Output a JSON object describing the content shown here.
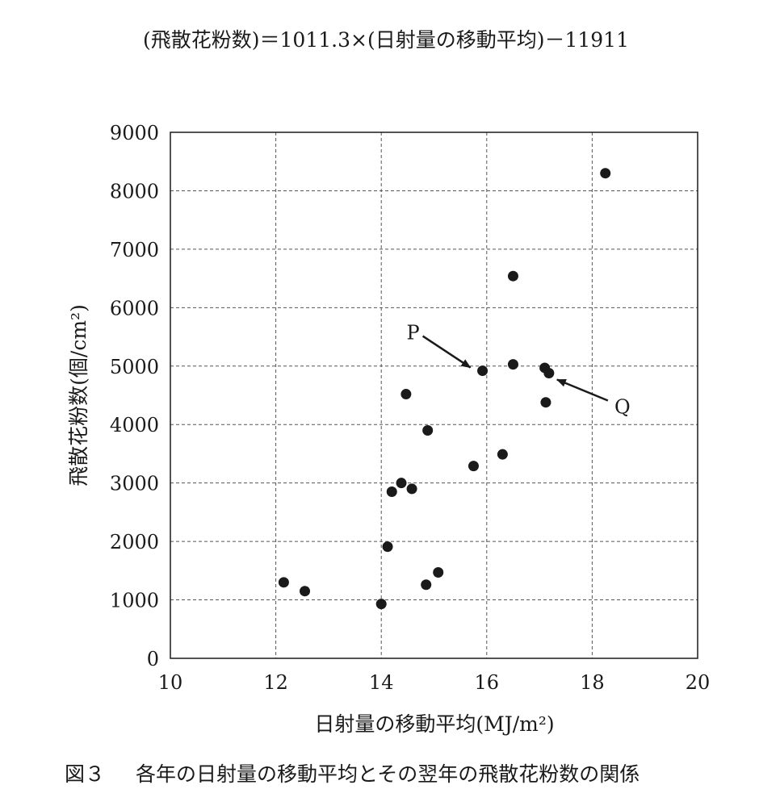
{
  "chart_data": {
    "type": "scatter",
    "title": "(飛散花粉数)＝1011.3×(日射量の移動平均)－11911",
    "xlabel": "日射量の移動平均(MJ/m²)",
    "ylabel": "飛散花粉数(個/cm²)",
    "xlim": [
      10,
      20
    ],
    "ylim": [
      0,
      9000
    ],
    "x_ticks": [
      "10",
      "12",
      "14",
      "16",
      "18",
      "20"
    ],
    "y_ticks": [
      "0",
      "1000",
      "2000",
      "3000",
      "4000",
      "5000",
      "6000",
      "7000",
      "8000",
      "9000"
    ],
    "grid": true,
    "series": [
      {
        "points": [
          {
            "x": 12.15,
            "y": 1300
          },
          {
            "x": 12.55,
            "y": 1150
          },
          {
            "x": 14.0,
            "y": 930
          },
          {
            "x": 14.12,
            "y": 1910
          },
          {
            "x": 14.2,
            "y": 2850
          },
          {
            "x": 14.38,
            "y": 3000
          },
          {
            "x": 14.47,
            "y": 4520
          },
          {
            "x": 14.58,
            "y": 2900
          },
          {
            "x": 14.85,
            "y": 1260
          },
          {
            "x": 14.88,
            "y": 3900
          },
          {
            "x": 15.08,
            "y": 1470
          },
          {
            "x": 15.75,
            "y": 3290
          },
          {
            "x": 15.92,
            "y": 4920
          },
          {
            "x": 16.3,
            "y": 3490
          },
          {
            "x": 16.5,
            "y": 5030
          },
          {
            "x": 16.5,
            "y": 6540
          },
          {
            "x": 17.1,
            "y": 4970
          },
          {
            "x": 17.12,
            "y": 4380
          },
          {
            "x": 17.18,
            "y": 4880
          },
          {
            "x": 18.25,
            "y": 8300
          }
        ]
      }
    ],
    "annotations": [
      {
        "text": "P",
        "target": {
          "x": 15.92,
          "y": 4920
        }
      },
      {
        "text": "Q",
        "target": {
          "x": 17.18,
          "y": 4880
        }
      }
    ]
  },
  "caption": {
    "figure_number": "図３",
    "text": "各年の日射量の移動平均とその翌年の飛散花粉数の関係"
  }
}
